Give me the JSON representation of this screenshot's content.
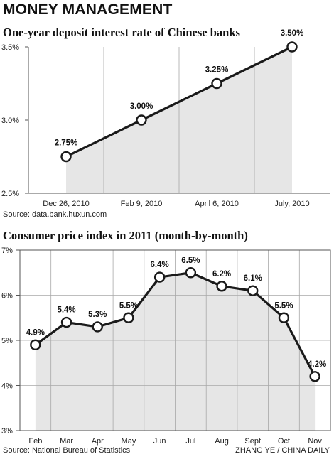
{
  "header": {
    "title": "MONEY MANAGEMENT"
  },
  "colors": {
    "area_fill": "#e6e6e6",
    "line": "#1a1a1a",
    "grid": "#a8a8a8",
    "frame": "#555555",
    "marker_fill": "#ffffff"
  },
  "chart_data": [
    {
      "type": "area",
      "title": "One-year deposit interest rate of Chinese banks",
      "categories": [
        "Dec 26, 2010",
        "Feb 9, 2010",
        "April 6, 2010",
        "July, 2010"
      ],
      "values": [
        2.75,
        3.0,
        3.25,
        3.5
      ],
      "data_labels": [
        "2.75%",
        "3.00%",
        "3.25%",
        "3.50%"
      ],
      "ylim": [
        2.5,
        3.5
      ],
      "yticks": [
        2.5,
        3.0,
        3.5
      ],
      "ytick_labels": [
        "2.5%",
        "3.0%",
        "3.5%"
      ],
      "xlabel": "",
      "ylabel": "",
      "grid": "vertical",
      "source": "Source: data.bank.huxun.com"
    },
    {
      "type": "area",
      "title": "Consumer price index in 2011 (month-by-month)",
      "categories": [
        "Feb",
        "Mar",
        "Apr",
        "May",
        "Jun",
        "Jul",
        "Aug",
        "Sept",
        "Oct",
        "Nov"
      ],
      "values": [
        4.9,
        5.4,
        5.3,
        5.5,
        6.4,
        6.5,
        6.2,
        6.1,
        5.5,
        4.2
      ],
      "data_labels": [
        "4.9%",
        "5.4%",
        "5.3%",
        "5.5%",
        "6.4%",
        "6.5%",
        "6.2%",
        "6.1%",
        "5.5%",
        "4.2%"
      ],
      "ylim": [
        3,
        7
      ],
      "yticks": [
        3,
        4,
        5,
        6,
        7
      ],
      "ytick_labels": [
        "3%",
        "4%",
        "5%",
        "6%",
        "7%"
      ],
      "xlabel": "",
      "ylabel": "",
      "grid": "both",
      "source": "Source: National Bureau of Statistics"
    }
  ],
  "credit": "ZHANG YE / CHINA DAILY"
}
